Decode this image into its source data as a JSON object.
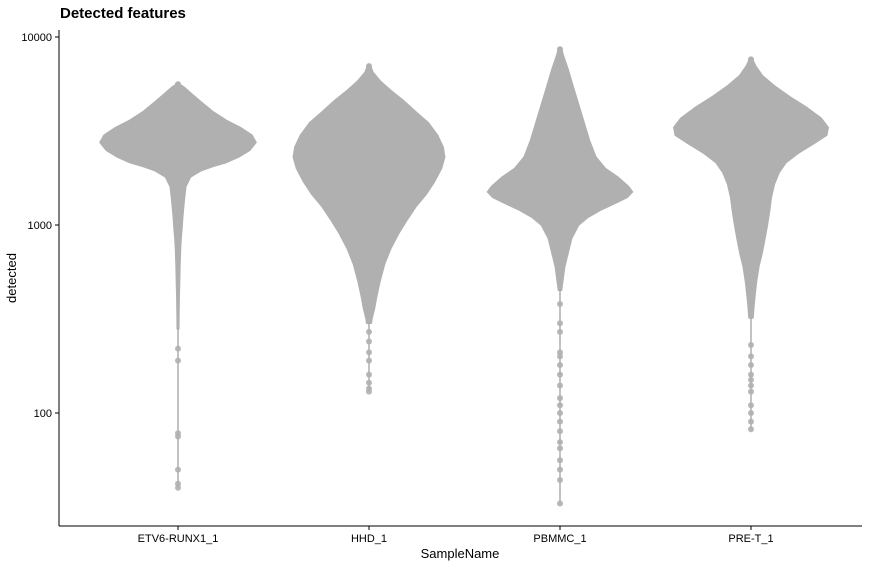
{
  "chart_data": {
    "type": "violin",
    "title": "Detected features",
    "xlabel": "SampleName",
    "ylabel": "detected",
    "y_scale": "log10",
    "ylim": [
      30,
      11000
    ],
    "y_ticks": [
      {
        "value": 100,
        "label": "100"
      },
      {
        "value": 1000,
        "label": "1000"
      },
      {
        "value": 10000,
        "label": "10000"
      }
    ],
    "grid": false,
    "fill_color": "#b0b0b0",
    "categories": [
      "ETV6-RUNX1_1",
      "HHD_1",
      "PBMMC_1",
      "PRE-T_1"
    ],
    "violins": [
      {
        "category": "ETV6-RUNX1_1",
        "profile": [
          [
            5600,
            0.02
          ],
          [
            5400,
            0.08
          ],
          [
            5000,
            0.17
          ],
          [
            4500,
            0.3
          ],
          [
            4000,
            0.45
          ],
          [
            3600,
            0.62
          ],
          [
            3300,
            0.8
          ],
          [
            3000,
            0.95
          ],
          [
            2750,
            1.0
          ],
          [
            2500,
            0.92
          ],
          [
            2300,
            0.78
          ],
          [
            2150,
            0.62
          ],
          [
            2050,
            0.45
          ],
          [
            1950,
            0.3
          ],
          [
            1800,
            0.16
          ],
          [
            1600,
            0.1
          ],
          [
            1350,
            0.08
          ],
          [
            1100,
            0.06
          ],
          [
            950,
            0.05
          ],
          [
            850,
            0.04
          ],
          [
            750,
            0.032
          ],
          [
            600,
            0.025
          ],
          [
            500,
            0.02
          ],
          [
            420,
            0.015
          ],
          [
            330,
            0.012
          ],
          [
            280,
            0.01
          ]
        ],
        "outliers": [
          220,
          190,
          78,
          75,
          50,
          42,
          40
        ]
      },
      {
        "category": "HHD_1",
        "profile": [
          [
            7000,
            0.02
          ],
          [
            6500,
            0.05
          ],
          [
            5800,
            0.15
          ],
          [
            5200,
            0.28
          ],
          [
            4600,
            0.44
          ],
          [
            4000,
            0.6
          ],
          [
            3500,
            0.76
          ],
          [
            3000,
            0.88
          ],
          [
            2600,
            0.95
          ],
          [
            2300,
            0.97
          ],
          [
            2000,
            0.93
          ],
          [
            1700,
            0.84
          ],
          [
            1450,
            0.73
          ],
          [
            1250,
            0.6
          ],
          [
            1050,
            0.48
          ],
          [
            900,
            0.38
          ],
          [
            750,
            0.28
          ],
          [
            620,
            0.2
          ],
          [
            500,
            0.14
          ],
          [
            420,
            0.1
          ],
          [
            360,
            0.07
          ],
          [
            320,
            0.04
          ],
          [
            300,
            0.03
          ]
        ],
        "outliers": [
          270,
          240,
          210,
          190,
          160,
          145,
          135,
          130
        ]
      },
      {
        "category": "PBMMC_1",
        "profile": [
          [
            8600,
            0.02
          ],
          [
            7800,
            0.05
          ],
          [
            6800,
            0.1
          ],
          [
            5600,
            0.16
          ],
          [
            4500,
            0.23
          ],
          [
            3600,
            0.3
          ],
          [
            2800,
            0.38
          ],
          [
            2300,
            0.46
          ],
          [
            2000,
            0.58
          ],
          [
            1800,
            0.74
          ],
          [
            1600,
            0.88
          ],
          [
            1500,
            0.93
          ],
          [
            1400,
            0.86
          ],
          [
            1300,
            0.7
          ],
          [
            1200,
            0.52
          ],
          [
            1100,
            0.36
          ],
          [
            1000,
            0.24
          ],
          [
            850,
            0.15
          ],
          [
            700,
            0.1
          ],
          [
            600,
            0.06
          ],
          [
            500,
            0.035
          ],
          [
            450,
            0.02
          ]
        ],
        "outliers": [
          380,
          300,
          270,
          210,
          200,
          180,
          160,
          140,
          120,
          110,
          100,
          90,
          80,
          70,
          65,
          56,
          50,
          44,
          33
        ]
      },
      {
        "category": "PRE-T_1",
        "profile": [
          [
            7600,
            0.02
          ],
          [
            7000,
            0.06
          ],
          [
            6200,
            0.15
          ],
          [
            5500,
            0.3
          ],
          [
            4800,
            0.5
          ],
          [
            4200,
            0.72
          ],
          [
            3700,
            0.9
          ],
          [
            3300,
            0.99
          ],
          [
            3000,
            0.97
          ],
          [
            2700,
            0.8
          ],
          [
            2400,
            0.6
          ],
          [
            2150,
            0.45
          ],
          [
            1900,
            0.36
          ],
          [
            1650,
            0.3
          ],
          [
            1400,
            0.26
          ],
          [
            1200,
            0.24
          ],
          [
            1000,
            0.21
          ],
          [
            850,
            0.18
          ],
          [
            700,
            0.14
          ],
          [
            600,
            0.1
          ],
          [
            500,
            0.07
          ],
          [
            420,
            0.05
          ],
          [
            360,
            0.035
          ],
          [
            320,
            0.025
          ]
        ],
        "outliers": [
          230,
          200,
          180,
          160,
          150,
          140,
          130,
          110,
          100,
          90,
          82
        ]
      }
    ]
  }
}
